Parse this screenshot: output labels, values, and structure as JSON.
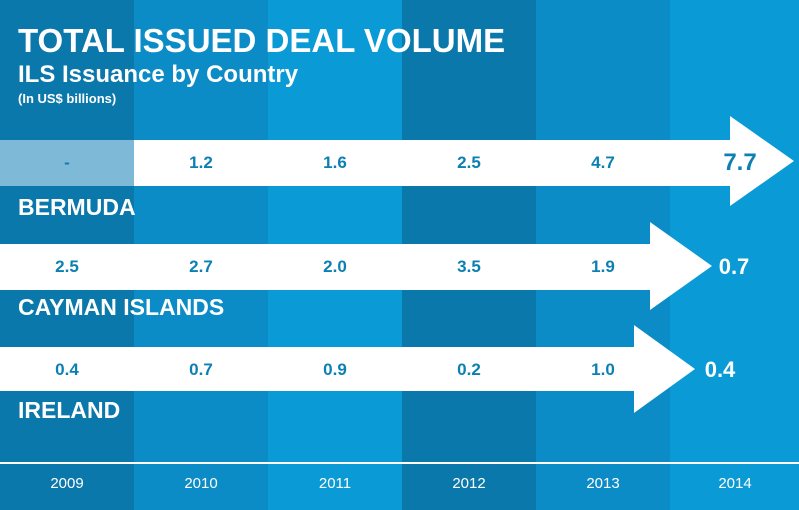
{
  "chart_data": {
    "type": "table",
    "title": "TOTAL ISSUED DEAL VOLUME",
    "subtitle": "ILS Issuance by Country",
    "unit_note": "(In US$ billions)",
    "categories": [
      "2009",
      "2010",
      "2011",
      "2012",
      "2013",
      "2014"
    ],
    "series": [
      {
        "name": "BERMUDA",
        "values": [
          null,
          1.2,
          1.6,
          2.5,
          4.7,
          7.7
        ],
        "labels": [
          "-",
          "1.2",
          "1.6",
          "2.5",
          "4.7",
          "7.7"
        ]
      },
      {
        "name": "CAYMAN ISLANDS",
        "values": [
          2.5,
          2.7,
          2.0,
          3.5,
          1.9,
          0.7
        ],
        "labels": [
          "2.5",
          "2.7",
          "2.0",
          "3.5",
          "1.9",
          "0.7"
        ]
      },
      {
        "name": "IRELAND",
        "values": [
          0.4,
          0.7,
          0.9,
          0.2,
          1.0,
          0.4
        ],
        "labels": [
          "0.4",
          "0.7",
          "0.9",
          "0.2",
          "1.0",
          "0.4"
        ]
      }
    ]
  },
  "colors": {
    "column_shades": [
      "#0a78ab",
      "#0c8cc6",
      "#0a9ad6",
      "#0a78ab",
      "#0c8cc6",
      "#0a9ad6"
    ],
    "arrow": "#ffffff",
    "value_text": "#0c7fb3",
    "missing_cell": "#7fb9d8"
  }
}
